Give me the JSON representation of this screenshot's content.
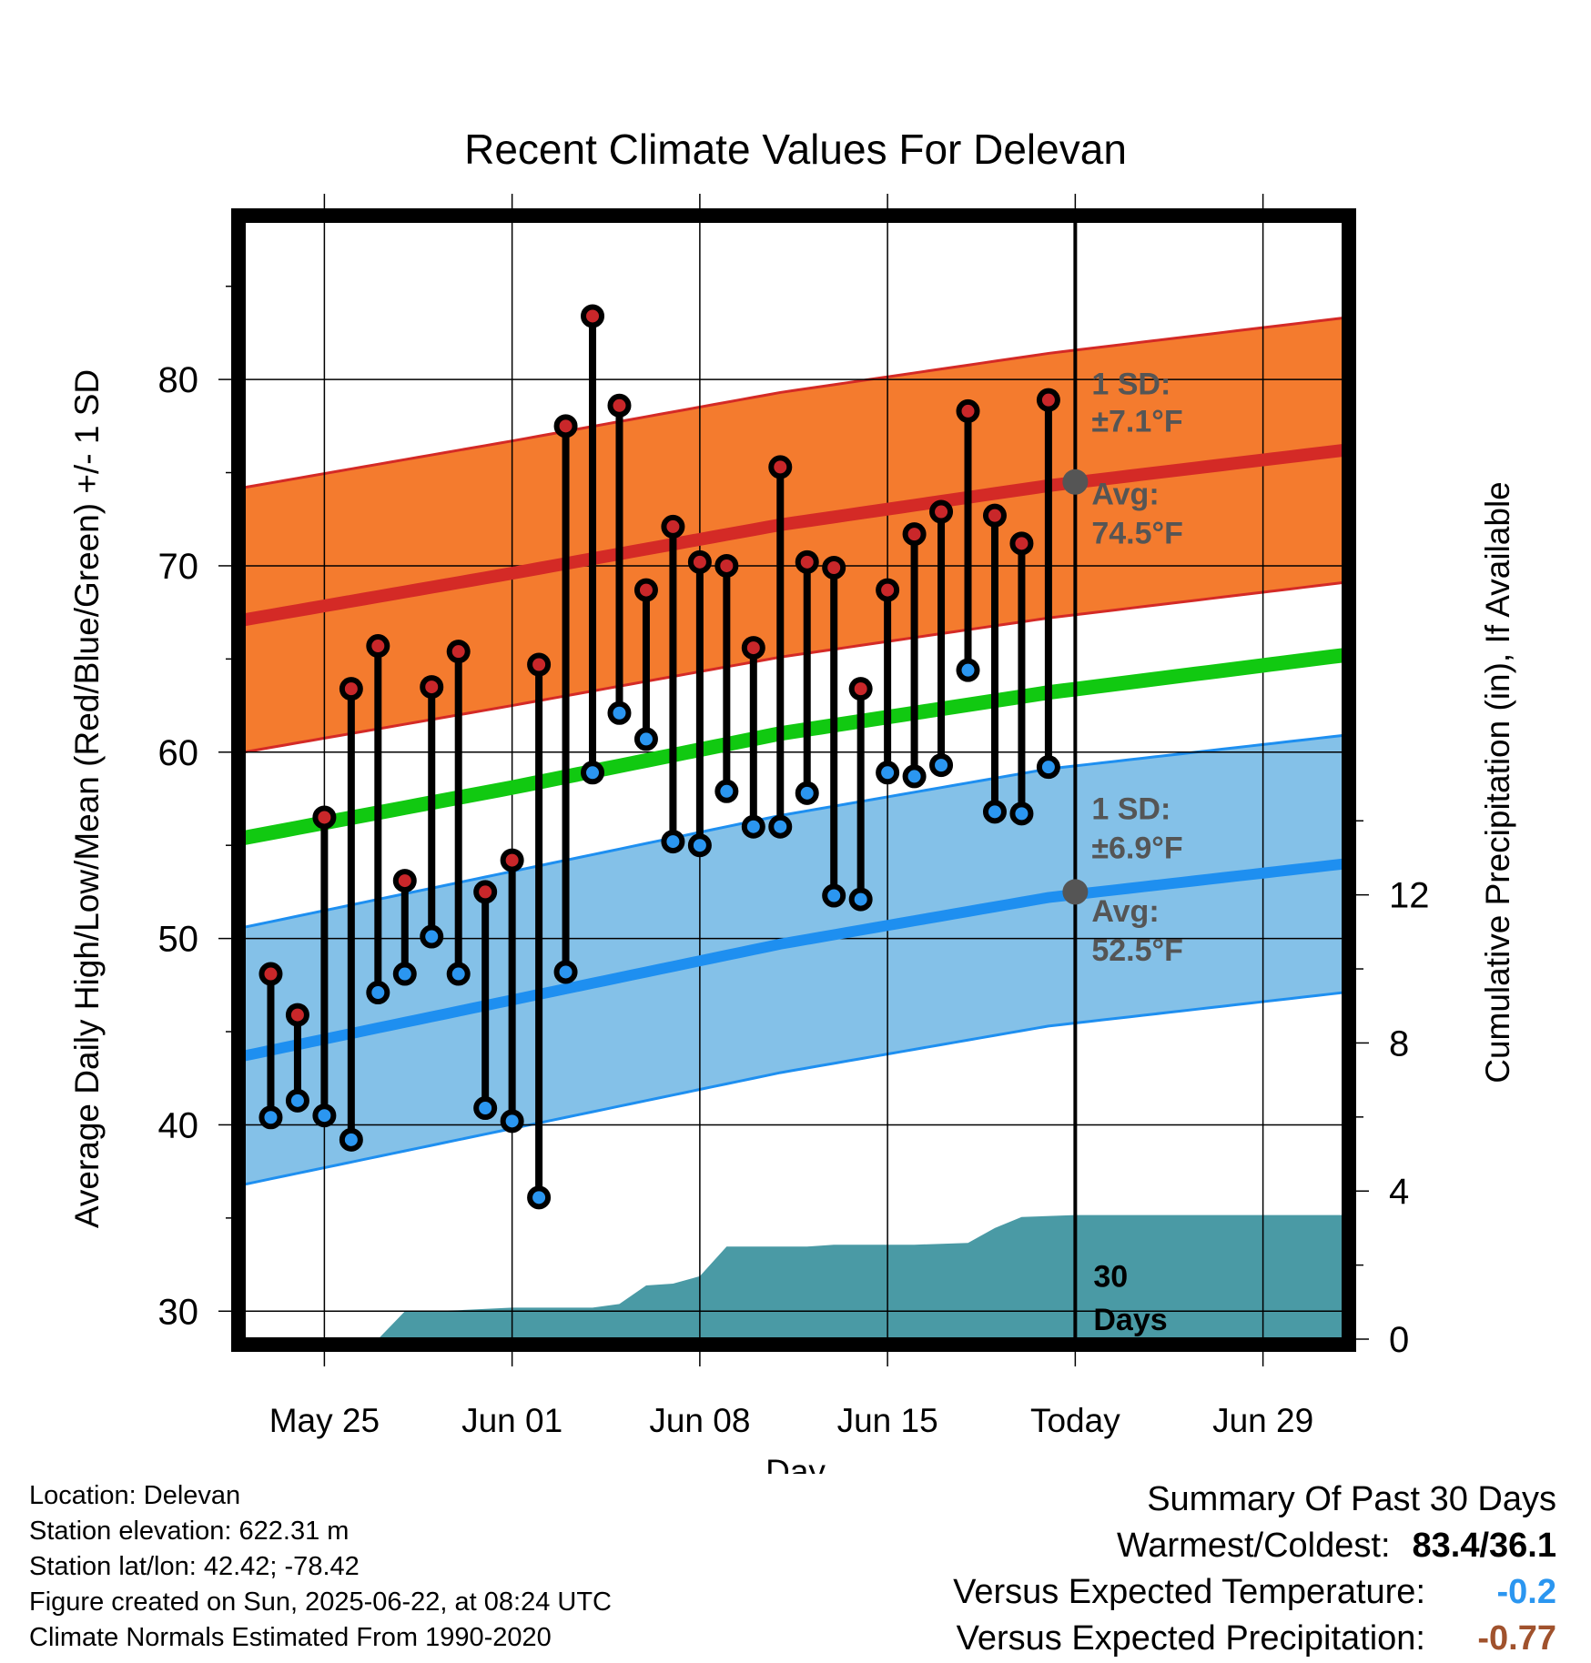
{
  "chart_data": {
    "type": "line",
    "title": "Recent Climate Values For Delevan",
    "xlabel": "Day",
    "ylabel": "Average Daily High/Low/Mean (Red/Blue/Green) +/- 1 SD",
    "y2label": "Cumulative Precipitation (in), If Available",
    "x_tick_labels": [
      "May 25",
      "Jun 01",
      "Jun 08",
      "Jun 15",
      "Today",
      "Jun 29"
    ],
    "x_tick_dates": [
      "2025-05-25",
      "2025-06-01",
      "2025-06-08",
      "2025-06-15",
      "2025-06-22",
      "2025-06-29"
    ],
    "xlim": [
      "2025-05-22",
      "2025-07-02"
    ],
    "ylim": [
      28.5,
      88.5
    ],
    "y_ticks": [
      30,
      40,
      50,
      60,
      70,
      80
    ],
    "y2lim": [
      0,
      30.2
    ],
    "y2_ticks": [
      0,
      4,
      8,
      12
    ],
    "grid": true,
    "today": "2025-06-22",
    "today_label": "Today",
    "days_label_1": "30",
    "days_label_2": "Days",
    "observed": {
      "dates": [
        "2025-05-23",
        "2025-05-24",
        "2025-05-25",
        "2025-05-26",
        "2025-05-27",
        "2025-05-28",
        "2025-05-29",
        "2025-05-30",
        "2025-05-31",
        "2025-06-01",
        "2025-06-02",
        "2025-06-03",
        "2025-06-04",
        "2025-06-05",
        "2025-06-06",
        "2025-06-07",
        "2025-06-08",
        "2025-06-09",
        "2025-06-10",
        "2025-06-11",
        "2025-06-12",
        "2025-06-13",
        "2025-06-14",
        "2025-06-15",
        "2025-06-16",
        "2025-06-17",
        "2025-06-18",
        "2025-06-19",
        "2025-06-20",
        "2025-06-21"
      ],
      "high": [
        48.1,
        45.9,
        56.5,
        63.4,
        65.7,
        53.1,
        63.5,
        65.4,
        52.5,
        54.2,
        64.7,
        77.5,
        83.4,
        78.6,
        68.7,
        72.1,
        70.2,
        70.0,
        65.6,
        75.3,
        70.2,
        69.9,
        63.4,
        68.7,
        71.7,
        72.9,
        78.3,
        72.7,
        71.2,
        78.9
      ],
      "low": [
        40.4,
        41.3,
        40.5,
        39.2,
        47.1,
        48.1,
        50.1,
        48.1,
        40.9,
        40.2,
        36.1,
        48.2,
        58.9,
        62.1,
        60.7,
        55.2,
        55.0,
        57.9,
        56.0,
        56.0,
        57.8,
        52.3,
        52.1,
        58.9,
        58.7,
        59.3,
        64.4,
        56.8,
        56.7,
        59.2
      ]
    },
    "normals": {
      "dates": [
        "2025-05-22",
        "2025-06-01",
        "2025-06-11",
        "2025-06-21",
        "2025-07-02"
      ],
      "avg_high": [
        67.1,
        69.6,
        72.2,
        74.3,
        76.2
      ],
      "avg_low": [
        43.7,
        46.7,
        49.7,
        52.2,
        54.0
      ],
      "avg_mean": [
        55.4,
        58.1,
        61.0,
        63.2,
        65.2
      ],
      "high_sd": 7.1,
      "low_sd": 6.9
    },
    "precip_cumulative": {
      "dates": [
        "2025-05-22",
        "2025-05-24",
        "2025-05-26",
        "2025-05-27",
        "2025-05-28",
        "2025-05-30",
        "2025-06-01",
        "2025-06-04",
        "2025-06-05",
        "2025-06-06",
        "2025-06-07",
        "2025-06-08",
        "2025-06-09",
        "2025-06-10",
        "2025-06-12",
        "2025-06-13",
        "2025-06-16",
        "2025-06-18",
        "2025-06-19",
        "2025-06-20",
        "2025-06-22",
        "2025-07-02"
      ],
      "values": [
        0.0,
        0.0,
        0.0,
        0.0,
        0.75,
        0.78,
        0.85,
        0.85,
        0.95,
        1.45,
        1.5,
        1.7,
        2.5,
        2.5,
        2.5,
        2.55,
        2.55,
        2.6,
        3.0,
        3.3,
        3.35,
        3.35
      ]
    },
    "annotations": {
      "high_sd_label": "1 SD:",
      "high_sd_value": "±7.1°F",
      "high_avg_label": "Avg:",
      "high_avg_value": "74.5°F",
      "high_avg_today": 74.5,
      "low_sd_label": "1 SD:",
      "low_sd_value": "±6.9°F",
      "low_avg_label": "Avg:",
      "low_avg_value": "52.5°F",
      "low_avg_today": 52.5
    },
    "colors": {
      "high_band": "#f47b2e",
      "high_line": "#d42a26",
      "low_band": "#84c1e8",
      "low_line": "#1e8ff0",
      "mean_line": "#11c911",
      "precip": "#4a9aa5",
      "high_dot": "#c9272a",
      "low_dot": "#2b96f0",
      "annotation_text": "#555555"
    }
  },
  "meta": {
    "location": "Location: Delevan",
    "elevation": "Station elevation: 622.31 m",
    "latlon": "Station lat/lon: 42.42; -78.42",
    "created": "Figure created on Sun, 2025-06-22, at 08:24 UTC",
    "normals": "Climate Normals Estimated From 1990-2020"
  },
  "summary": {
    "title": "Summary Of Past 30 Days",
    "warm_cold_label": "Warmest/Coldest:",
    "warm_cold_value": "83.4/36.1",
    "temp_label": "Versus Expected Temperature:",
    "temp_value": "-0.2",
    "temp_color": "#2b96f0",
    "precip_label": "Versus Expected Precipitation:",
    "precip_value": "-0.77",
    "precip_color": "#a0522d"
  }
}
